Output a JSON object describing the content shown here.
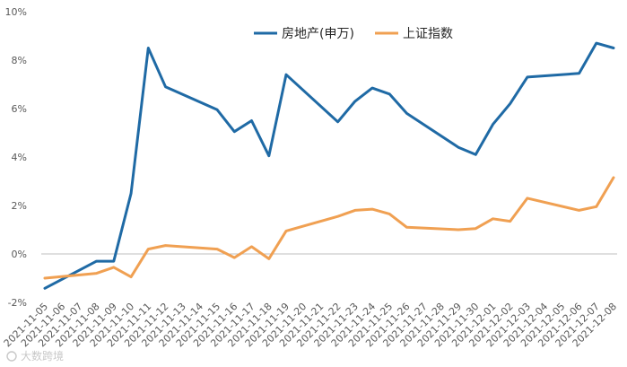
{
  "chart_data": {
    "type": "line",
    "title": "",
    "xlabel": "",
    "ylabel": "",
    "ylim": [
      -2,
      10
    ],
    "y_ticks": [
      "-2%",
      "0%",
      "2%",
      "4%",
      "6%",
      "8%",
      "10%"
    ],
    "y_tick_values": [
      -2,
      0,
      2,
      4,
      6,
      8,
      10
    ],
    "grid": false,
    "legend_position": "top-right",
    "categories": [
      "2021-11-05",
      "2021-11-06",
      "2021-11-07",
      "2021-11-08",
      "2021-11-09",
      "2021-11-10",
      "2021-11-11",
      "2021-11-12",
      "2021-11-13",
      "2021-11-14",
      "2021-11-15",
      "2021-11-16",
      "2021-11-17",
      "2021-11-18",
      "2021-11-19",
      "2021-11-20",
      "2021-11-21",
      "2021-11-22",
      "2021-11-23",
      "2021-11-24",
      "2021-11-25",
      "2021-11-26",
      "2021-11-27",
      "2021-11-28",
      "2021-11-29",
      "2021-11-30",
      "2021-12-01",
      "2021-12-02",
      "2021-12-03",
      "2021-12-04",
      "2021-12-05",
      "2021-12-06",
      "2021-12-07",
      "2021-12-08"
    ],
    "series": [
      {
        "name": "房地产(申万)",
        "color": "#1f6aa5",
        "values": [
          {
            "x": "2021-11-05",
            "y": -1.42
          },
          {
            "x": "2021-11-08",
            "y": -0.3
          },
          {
            "x": "2021-11-09",
            "y": -0.3
          },
          {
            "x": "2021-11-10",
            "y": 2.5
          },
          {
            "x": "2021-11-11",
            "y": 8.5
          },
          {
            "x": "2021-11-12",
            "y": 6.9
          },
          {
            "x": "2021-11-15",
            "y": 5.95
          },
          {
            "x": "2021-11-16",
            "y": 5.05
          },
          {
            "x": "2021-11-17",
            "y": 5.5
          },
          {
            "x": "2021-11-18",
            "y": 4.05
          },
          {
            "x": "2021-11-19",
            "y": 7.4
          },
          {
            "x": "2021-11-22",
            "y": 5.45
          },
          {
            "x": "2021-11-23",
            "y": 6.3
          },
          {
            "x": "2021-11-24",
            "y": 6.85
          },
          {
            "x": "2021-11-25",
            "y": 6.6
          },
          {
            "x": "2021-11-26",
            "y": 5.8
          },
          {
            "x": "2021-11-29",
            "y": 4.4
          },
          {
            "x": "2021-11-30",
            "y": 4.1
          },
          {
            "x": "2021-12-01",
            "y": 5.35
          },
          {
            "x": "2021-12-02",
            "y": 6.2
          },
          {
            "x": "2021-12-03",
            "y": 7.3
          },
          {
            "x": "2021-12-06",
            "y": 7.45
          },
          {
            "x": "2021-12-07",
            "y": 8.7
          },
          {
            "x": "2021-12-08",
            "y": 8.5
          }
        ]
      },
      {
        "name": "上证指数",
        "color": "#f0a052",
        "values": [
          {
            "x": "2021-11-05",
            "y": -1.0
          },
          {
            "x": "2021-11-08",
            "y": -0.8
          },
          {
            "x": "2021-11-09",
            "y": -0.55
          },
          {
            "x": "2021-11-10",
            "y": -0.95
          },
          {
            "x": "2021-11-11",
            "y": 0.2
          },
          {
            "x": "2021-11-12",
            "y": 0.35
          },
          {
            "x": "2021-11-15",
            "y": 0.2
          },
          {
            "x": "2021-11-16",
            "y": -0.15
          },
          {
            "x": "2021-11-17",
            "y": 0.3
          },
          {
            "x": "2021-11-18",
            "y": -0.2
          },
          {
            "x": "2021-11-19",
            "y": 0.95
          },
          {
            "x": "2021-11-22",
            "y": 1.55
          },
          {
            "x": "2021-11-23",
            "y": 1.8
          },
          {
            "x": "2021-11-24",
            "y": 1.85
          },
          {
            "x": "2021-11-25",
            "y": 1.65
          },
          {
            "x": "2021-11-26",
            "y": 1.1
          },
          {
            "x": "2021-11-29",
            "y": 1.0
          },
          {
            "x": "2021-11-30",
            "y": 1.05
          },
          {
            "x": "2021-12-01",
            "y": 1.45
          },
          {
            "x": "2021-12-02",
            "y": 1.35
          },
          {
            "x": "2021-12-03",
            "y": 2.3
          },
          {
            "x": "2021-12-06",
            "y": 1.8
          },
          {
            "x": "2021-12-07",
            "y": 1.95
          },
          {
            "x": "2021-12-08",
            "y": 3.15
          }
        ]
      }
    ]
  },
  "watermark": "大数跨境"
}
